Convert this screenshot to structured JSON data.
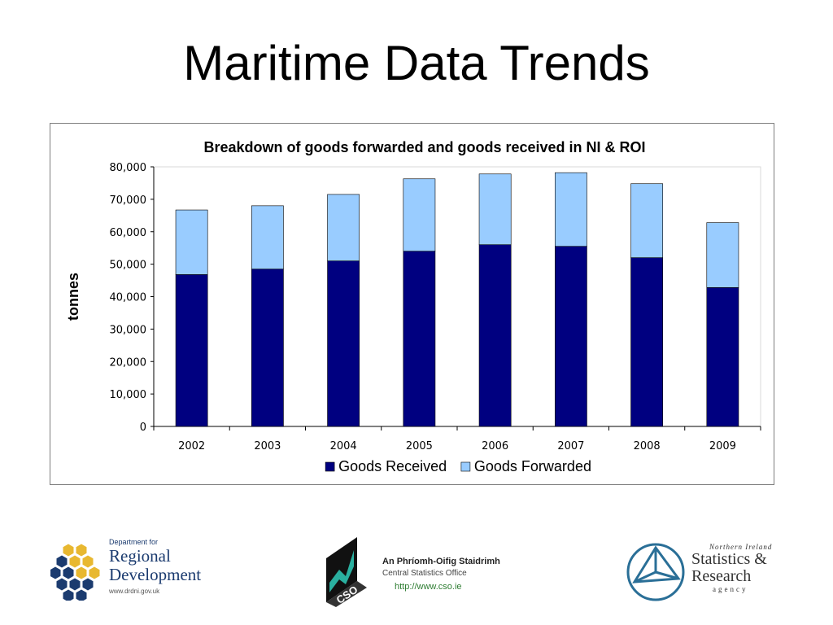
{
  "slide": {
    "title": "Maritime Data Trends"
  },
  "chart_data": {
    "type": "bar",
    "stacked": true,
    "title": "Breakdown of goods forwarded and goods received in NI & ROI",
    "xlabel": "",
    "ylabel": "tonnes",
    "ylim": [
      0,
      80000
    ],
    "yticks": [
      0,
      10000,
      20000,
      30000,
      40000,
      50000,
      60000,
      70000,
      80000
    ],
    "ytick_labels": [
      "0",
      "10,000",
      "20,000",
      "30,000",
      "40,000",
      "50,000",
      "60,000",
      "70,000",
      "80,000"
    ],
    "categories": [
      "2002",
      "2003",
      "2004",
      "2005",
      "2006",
      "2007",
      "2008",
      "2009"
    ],
    "series": [
      {
        "name": "Goods Received",
        "color": "#000080",
        "values": [
          46800,
          48500,
          51000,
          54000,
          56000,
          55500,
          52000,
          42800
        ]
      },
      {
        "name": "Goods Forwarded",
        "color": "#99ccff",
        "values": [
          19900,
          19500,
          20500,
          22300,
          21800,
          22700,
          22800,
          20000
        ]
      }
    ],
    "grid": false,
    "legend": "bottom"
  },
  "logos": {
    "drd": {
      "pre": "Department for",
      "line1": "Regional",
      "line2": "Development",
      "url": "www.drdni.gov.uk"
    },
    "cso": {
      "irish": "An Phríomh-Oifig Staidrimh",
      "english": "Central Statistics Office",
      "url": "http://www.cso.ie",
      "mark": "CSO"
    },
    "nisra": {
      "top": "Northern Ireland",
      "line1": "Statistics &",
      "line2": "Research",
      "bottom": "agency"
    }
  }
}
